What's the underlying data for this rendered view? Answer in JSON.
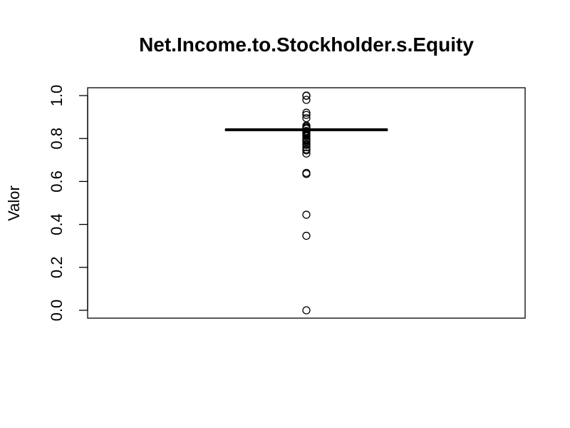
{
  "chart_data": {
    "type": "boxplot",
    "title": "Net.Income.to.Stockholder.s.Equity",
    "xlabel": "",
    "ylabel": "Valor",
    "ylim": [
      0,
      1
    ],
    "yticks": [
      "0.0",
      "0.2",
      "0.4",
      "0.6",
      "0.8",
      "1.0"
    ],
    "box": {
      "q1": 0.84,
      "median": 0.841,
      "q3": 0.842,
      "whisker_low": 0.839,
      "whisker_high": 0.843
    },
    "outliers": [
      1.0,
      0.999,
      0.98,
      0.92,
      0.91,
      0.895,
      0.86,
      0.855,
      0.85,
      0.845,
      0.835,
      0.83,
      0.825,
      0.82,
      0.815,
      0.81,
      0.8,
      0.795,
      0.79,
      0.785,
      0.775,
      0.77,
      0.76,
      0.75,
      0.745,
      0.73,
      0.64,
      0.635,
      0.445,
      0.347,
      0.0
    ],
    "grid": false,
    "legend": "none"
  }
}
